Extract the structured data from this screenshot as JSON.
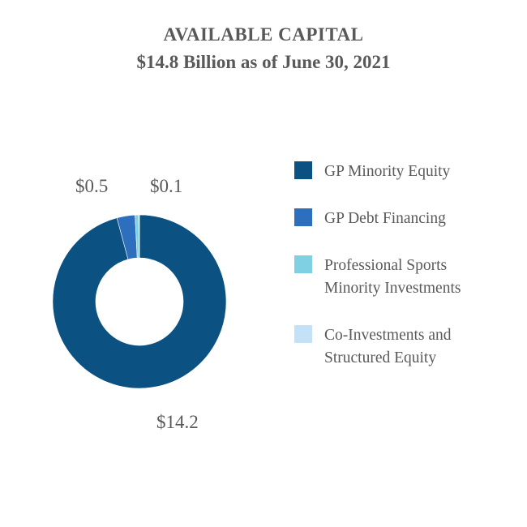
{
  "chart_data": {
    "type": "pie",
    "variant": "donut",
    "title": "AVAILABLE CAPITAL",
    "subtitle": "$14.8 Billion as of June 30, 2021",
    "unit": "$ billions",
    "legend_position": "right",
    "series": [
      {
        "name": "GP Minority Equity",
        "value": 14.2,
        "label": "$14.2",
        "color": "#0b5283"
      },
      {
        "name": "GP Debt Financing",
        "value": 0.5,
        "label": "$0.5",
        "color": "#2e6fbd"
      },
      {
        "name": "Professional Sports Minority Investments",
        "value": 0.1,
        "label": "$0.1",
        "color": "#7fd0e3"
      },
      {
        "name": "Co-Investments and Structured Equity",
        "value": 0.02,
        "label": "",
        "color": "#c3e2f8"
      }
    ],
    "legend": [
      {
        "lines": [
          "GP Minority Equity"
        ],
        "color": "#0b5283"
      },
      {
        "lines": [
          "GP Debt Financing"
        ],
        "color": "#2e6fbd"
      },
      {
        "lines": [
          "Professional Sports",
          "Minority Investments"
        ],
        "color": "#7fd0e3"
      },
      {
        "lines": [
          "Co-Investments and",
          "Structured Equity"
        ],
        "color": "#c3e2f8"
      }
    ]
  }
}
